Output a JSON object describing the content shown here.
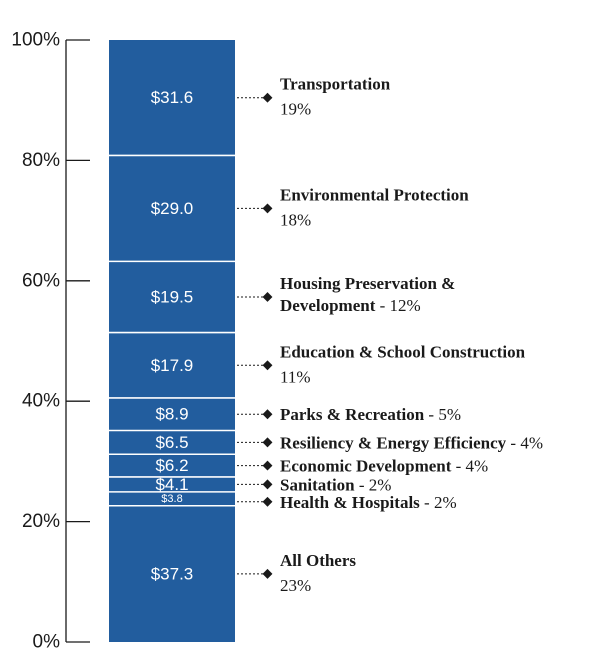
{
  "chart_data": {
    "type": "bar",
    "stacked": true,
    "title": "",
    "xlabel": "",
    "ylabel": "",
    "ylim": [
      0,
      100
    ],
    "y_ticks": [
      "0%",
      "20%",
      "40%",
      "60%",
      "80%",
      "100%"
    ],
    "bar_color": "#225d9e",
    "segments": [
      {
        "value": 37.3,
        "label": "$37.3",
        "name": "All Others",
        "pct": "23%"
      },
      {
        "value": 3.8,
        "label": "$3.8",
        "name": "Health & Hospitals",
        "pct": "2%"
      },
      {
        "value": 4.1,
        "label": "$4.1",
        "name": "Sanitation",
        "pct": "2%"
      },
      {
        "value": 6.2,
        "label": "$6.2",
        "name": "Economic Development",
        "pct": "4%"
      },
      {
        "value": 6.5,
        "label": "$6.5",
        "name": "Resiliency & Energy Efficiency",
        "pct": "4%"
      },
      {
        "value": 8.9,
        "label": "$8.9",
        "name": "Parks & Recreation",
        "pct": "5%"
      },
      {
        "value": 17.9,
        "label": "$17.9",
        "name": "Education & School Construction",
        "pct": "11%"
      },
      {
        "value": 19.5,
        "label": "$19.5",
        "name": "Housing Preservation & Development",
        "pct": "12%"
      },
      {
        "value": 29.0,
        "label": "$29.0",
        "name": "Environmental Protection",
        "pct": "18%"
      },
      {
        "value": 31.6,
        "label": "$31.6",
        "name": "Transportation",
        "pct": "19%"
      }
    ]
  }
}
